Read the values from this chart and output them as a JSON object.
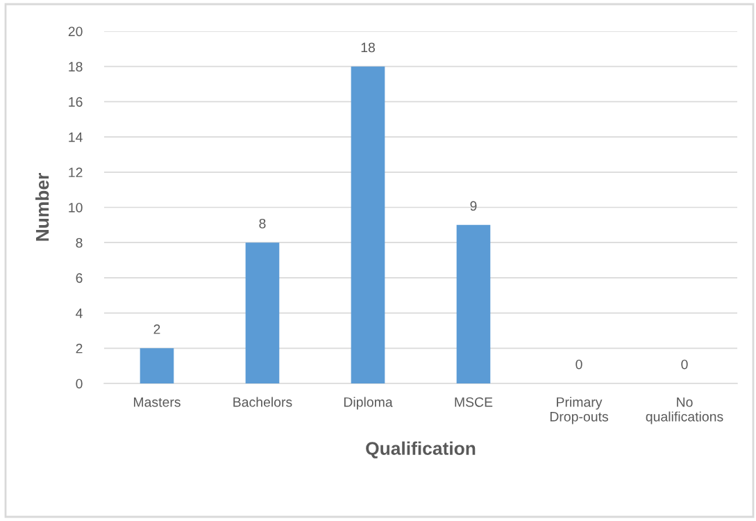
{
  "chart_data": {
    "type": "bar",
    "categories": [
      "Masters",
      "Bachelors",
      "Diploma",
      "MSCE",
      "Primary\nDrop-outs",
      "No\nqualifications"
    ],
    "values": [
      2,
      8,
      18,
      9,
      0,
      0
    ],
    "color": "#5b9bd5",
    "xlabel": "Qualification",
    "ylabel": "Number",
    "ylim": [
      0,
      20
    ],
    "yticks": [
      0,
      2,
      4,
      6,
      8,
      10,
      12,
      14,
      16,
      18,
      20
    ],
    "grid": "y",
    "data_labels": true
  }
}
